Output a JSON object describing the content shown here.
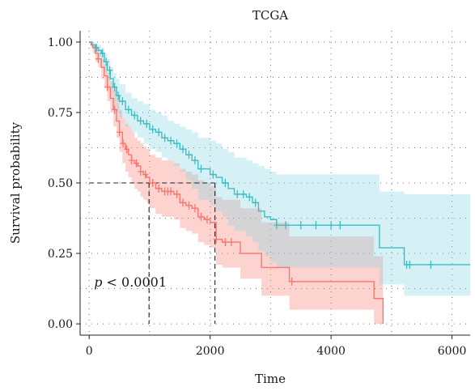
{
  "chart_data": {
    "type": "line",
    "subtype": "kaplan-meier",
    "title": "TCGA",
    "xlabel": "Time",
    "ylabel": "Survival probability",
    "xlim": [
      -150,
      6300
    ],
    "ylim": [
      -0.04,
      1.04
    ],
    "x_ticks": [
      0,
      2000,
      4000,
      6000
    ],
    "y_ticks": [
      0,
      0.25,
      0.5,
      0.75,
      1
    ],
    "y_tick_labels": [
      "0.00",
      "0.25",
      "0.50",
      "0.75",
      "1.00"
    ],
    "grid": "dotted",
    "annotation": {
      "p_label": "p",
      "p_rest": " < 0.0001",
      "x": 80,
      "y": 0.15
    },
    "median_line": {
      "y": 0.5,
      "medians": [
        {
          "series": "red",
          "x": 990
        },
        {
          "series": "cyan",
          "x": 2080
        }
      ]
    },
    "series": [
      {
        "key": "red",
        "color": "#F8766D",
        "fill_color": "#F8766D",
        "points": [
          [
            0,
            1.0
          ],
          [
            30,
            0.99
          ],
          [
            60,
            0.98
          ],
          [
            100,
            0.96
          ],
          [
            150,
            0.94
          ],
          [
            200,
            0.91
          ],
          [
            250,
            0.88
          ],
          [
            300,
            0.84
          ],
          [
            350,
            0.8
          ],
          [
            400,
            0.76
          ],
          [
            450,
            0.72
          ],
          [
            500,
            0.68
          ],
          [
            550,
            0.64
          ],
          [
            600,
            0.62
          ],
          [
            650,
            0.6
          ],
          [
            700,
            0.58
          ],
          [
            750,
            0.57
          ],
          [
            800,
            0.56
          ],
          [
            850,
            0.54
          ],
          [
            900,
            0.53
          ],
          [
            950,
            0.52
          ],
          [
            1000,
            0.5
          ],
          [
            1100,
            0.48
          ],
          [
            1200,
            0.47
          ],
          [
            1400,
            0.46
          ],
          [
            1500,
            0.43
          ],
          [
            1600,
            0.42
          ],
          [
            1700,
            0.41
          ],
          [
            1800,
            0.38
          ],
          [
            1900,
            0.37
          ],
          [
            2000,
            0.36
          ],
          [
            2100,
            0.3
          ],
          [
            2200,
            0.29
          ],
          [
            2400,
            0.29
          ],
          [
            2500,
            0.25
          ],
          [
            2800,
            0.25
          ],
          [
            2850,
            0.2
          ],
          [
            3300,
            0.2
          ],
          [
            3310,
            0.15
          ],
          [
            4700,
            0.15
          ],
          [
            4710,
            0.09
          ],
          [
            4850,
            0.09
          ],
          [
            4860,
            0.0
          ]
        ],
        "censor_x": [
          150,
          300,
          420,
          500,
          560,
          620,
          700,
          780,
          850,
          930,
          1050,
          1150,
          1250,
          1300,
          1350,
          1450,
          1550,
          1650,
          1750,
          1850,
          1950,
          2100,
          2250,
          2350,
          3350
        ],
        "ci_upper": [
          1.0,
          1.0,
          0.99,
          0.98,
          0.96,
          0.94,
          0.92,
          0.89,
          0.86,
          0.83,
          0.8,
          0.76,
          0.73,
          0.71,
          0.7,
          0.68,
          0.66,
          0.65,
          0.64,
          0.63,
          0.62,
          0.6,
          0.59,
          0.58,
          0.57,
          0.55,
          0.54,
          0.53,
          0.51,
          0.5,
          0.49,
          0.45,
          0.44,
          0.44,
          0.41,
          0.41,
          0.36,
          0.36,
          0.31,
          0.31,
          0.24,
          0.24,
          0.24
        ],
        "ci_lower": [
          1.0,
          0.98,
          0.96,
          0.93,
          0.91,
          0.87,
          0.84,
          0.79,
          0.75,
          0.7,
          0.66,
          0.61,
          0.57,
          0.54,
          0.52,
          0.5,
          0.48,
          0.47,
          0.45,
          0.44,
          0.43,
          0.41,
          0.39,
          0.38,
          0.37,
          0.34,
          0.33,
          0.32,
          0.29,
          0.28,
          0.27,
          0.21,
          0.2,
          0.2,
          0.16,
          0.16,
          0.1,
          0.1,
          0.05,
          0.05,
          0.0,
          0.0,
          0.0
        ]
      },
      {
        "key": "cyan",
        "color": "#3DBDC1",
        "fill_color": "#7FD4E2",
        "points": [
          [
            0,
            1.0
          ],
          [
            50,
            0.99
          ],
          [
            100,
            0.98
          ],
          [
            150,
            0.97
          ],
          [
            200,
            0.96
          ],
          [
            250,
            0.93
          ],
          [
            300,
            0.9
          ],
          [
            350,
            0.87
          ],
          [
            400,
            0.84
          ],
          [
            450,
            0.81
          ],
          [
            500,
            0.79
          ],
          [
            600,
            0.76
          ],
          [
            700,
            0.74
          ],
          [
            800,
            0.72
          ],
          [
            900,
            0.71
          ],
          [
            1000,
            0.69
          ],
          [
            1100,
            0.68
          ],
          [
            1200,
            0.66
          ],
          [
            1300,
            0.65
          ],
          [
            1400,
            0.64
          ],
          [
            1500,
            0.62
          ],
          [
            1600,
            0.6
          ],
          [
            1700,
            0.58
          ],
          [
            1800,
            0.55
          ],
          [
            1900,
            0.55
          ],
          [
            2000,
            0.53
          ],
          [
            2100,
            0.52
          ],
          [
            2200,
            0.5
          ],
          [
            2300,
            0.48
          ],
          [
            2400,
            0.46
          ],
          [
            2600,
            0.45
          ],
          [
            2700,
            0.43
          ],
          [
            2800,
            0.4
          ],
          [
            2900,
            0.38
          ],
          [
            3000,
            0.37
          ],
          [
            3100,
            0.35
          ],
          [
            4790,
            0.35
          ],
          [
            4800,
            0.27
          ],
          [
            5200,
            0.27
          ],
          [
            5210,
            0.21
          ],
          [
            6300,
            0.21
          ]
        ],
        "censor_x": [
          120,
          220,
          280,
          340,
          420,
          480,
          550,
          650,
          750,
          850,
          950,
          1050,
          1150,
          1250,
          1350,
          1450,
          1550,
          1650,
          1750,
          1850,
          2050,
          2250,
          2450,
          2550,
          2650,
          2750,
          3100,
          3250,
          3500,
          3750,
          4000,
          4150,
          5250,
          5300,
          5650
        ],
        "ci_upper": [
          1.0,
          1.0,
          0.99,
          0.99,
          0.98,
          0.96,
          0.94,
          0.91,
          0.89,
          0.87,
          0.85,
          0.82,
          0.8,
          0.79,
          0.78,
          0.76,
          0.75,
          0.74,
          0.72,
          0.71,
          0.7,
          0.69,
          0.68,
          0.66,
          0.66,
          0.65,
          0.64,
          0.62,
          0.61,
          0.59,
          0.58,
          0.57,
          0.56,
          0.55,
          0.54,
          0.53,
          0.53,
          0.47,
          0.47,
          0.46,
          0.46
        ],
        "ci_lower": [
          1.0,
          0.98,
          0.96,
          0.95,
          0.93,
          0.89,
          0.86,
          0.82,
          0.79,
          0.75,
          0.73,
          0.7,
          0.68,
          0.66,
          0.64,
          0.62,
          0.61,
          0.59,
          0.58,
          0.56,
          0.54,
          0.51,
          0.48,
          0.44,
          0.44,
          0.42,
          0.4,
          0.38,
          0.35,
          0.33,
          0.31,
          0.29,
          0.26,
          0.24,
          0.22,
          0.2,
          0.2,
          0.14,
          0.14,
          0.1,
          0.1
        ]
      }
    ]
  }
}
